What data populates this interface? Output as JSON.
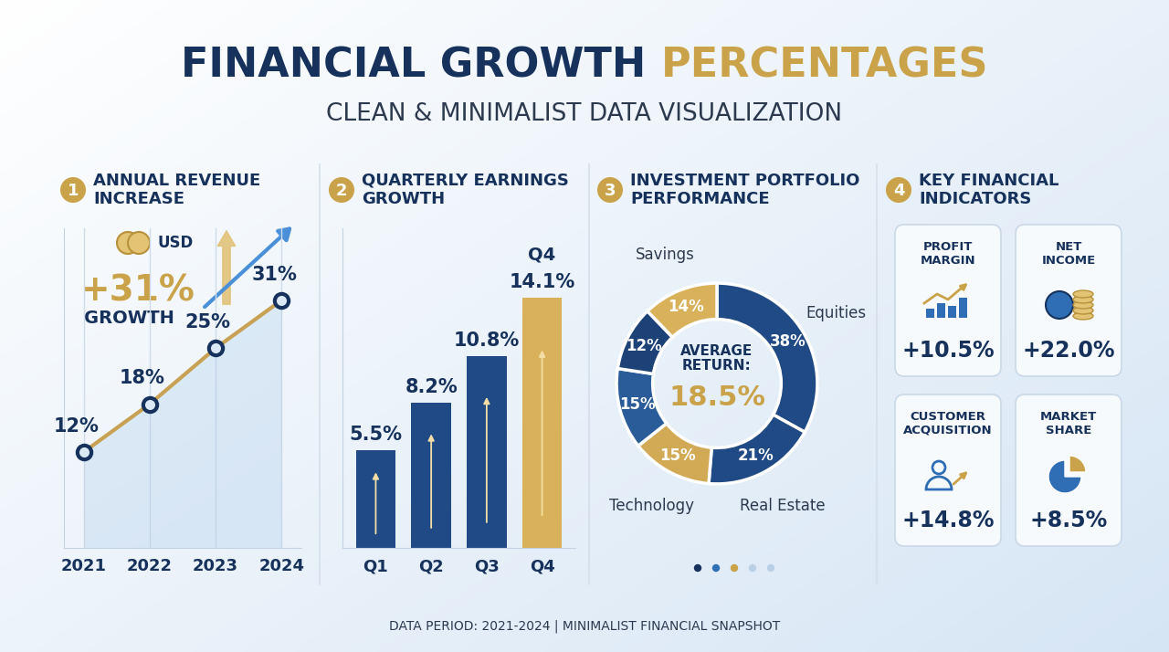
{
  "header": {
    "title": "FINANCIAL GROWTH PERCENTAGES",
    "subtitle": "CLEAN & MINIMALIST DATA VISUALIZATION"
  },
  "chart_data": [
    {
      "index": "1",
      "type": "line",
      "title": "ANNUAL REVENUE INCREASE",
      "categories": [
        "2021",
        "2022",
        "2023",
        "2024"
      ],
      "values": [
        12,
        18,
        25,
        31
      ],
      "value_labels": [
        "12%",
        "18%",
        "25%",
        "31%"
      ],
      "data_labels": true,
      "color": "#c8a254",
      "marker": "o",
      "line_style": "solid",
      "ylim": [
        0,
        40
      ],
      "yticks": [],
      "tick_labels": "x",
      "grid": "x",
      "annotations": [
        "USD",
        "+31%",
        "GROWTH"
      ]
    },
    {
      "index": "2",
      "type": "bar",
      "title": "QUARTERLY EARNINGS GROWTH",
      "categories": [
        "Q1",
        "Q2",
        "Q3",
        "Q4"
      ],
      "values": [
        5.5,
        8.2,
        10.8,
        14.1
      ],
      "value_labels": [
        "5.5%",
        "8.2%",
        "10.8%",
        "14.1%"
      ],
      "data_labels": true,
      "colors": [
        "#1f4a85",
        "#1f4a85",
        "#1f4a85",
        "#d8b15a"
      ],
      "ylim": [
        0,
        18
      ],
      "yticks": [],
      "tick_labels": "x",
      "grid": false,
      "annotations": [
        "Q4"
      ]
    },
    {
      "index": "3",
      "type": "donut",
      "title": "INVESTMENT PORTFOLIO PERFORMANCE",
      "categories": [
        "Equities",
        "Real Estate",
        "Technology",
        null,
        null,
        "Savings"
      ],
      "values": [
        38,
        21,
        15,
        15,
        12,
        14
      ],
      "value_labels": [
        "38%",
        "21%",
        "15%",
        "15%",
        "12%",
        "14%"
      ],
      "data_labels": true,
      "colors": [
        "#1f4a85",
        "#1f4a85",
        "#d2aa55",
        "#2a5c99",
        "#1d4278",
        "#d8b15a"
      ],
      "annotations": [
        "AVERAGE RETURN:",
        "18.5%"
      ]
    },
    {
      "index": "4",
      "type": "kpi",
      "title": "KEY FINANCIAL INDICATORS",
      "categories": [
        "PROFIT MARGIN",
        "NET INCOME",
        "CUSTOMER ACQUISITION",
        "MARKET SHARE"
      ],
      "values": [
        10.5,
        22.0,
        14.8,
        8.5
      ],
      "value_labels": [
        "+10.5%",
        "+22.0%",
        "+14.8%",
        "+8.5%"
      ]
    }
  ],
  "footer": "DATA PERIOD: 2021-2024 | MINIMALIST FINANCIAL SNAPSHOT"
}
